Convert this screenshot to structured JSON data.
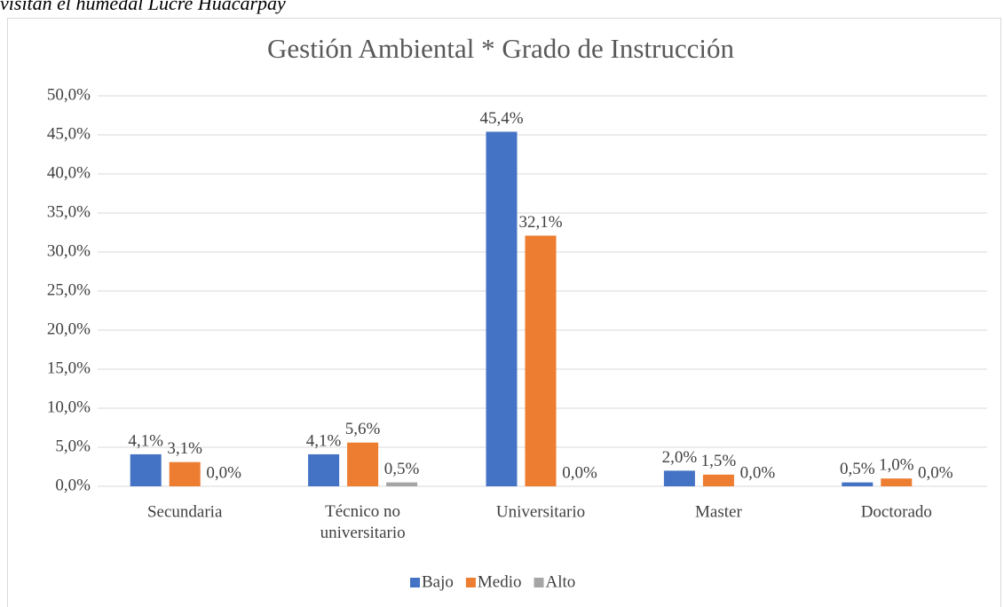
{
  "caption": "visitan el humedal Lucre Huacarpay",
  "chart_data": {
    "type": "bar",
    "title": "Gestión Ambiental * Grado de Instrucción",
    "categories": [
      "Secundaria",
      "Técnico no universitario",
      "Universitario",
      "Master",
      "Doctorado"
    ],
    "series": [
      {
        "name": "Bajo",
        "color": "#4472c4",
        "values": [
          4.1,
          4.1,
          45.4,
          2.0,
          0.5
        ],
        "value_labels": [
          "4,1%",
          "4,1%",
          "45,4%",
          "2,0%",
          "0,5%"
        ]
      },
      {
        "name": "Medio",
        "color": "#ed7d31",
        "values": [
          3.1,
          5.6,
          32.1,
          1.5,
          1.0
        ],
        "value_labels": [
          "3,1%",
          "5,6%",
          "32,1%",
          "1,5%",
          "1,0%"
        ]
      },
      {
        "name": "Alto",
        "color": "#a5a5a5",
        "values": [
          0.0,
          0.5,
          0.0,
          0.0,
          0.0
        ],
        "value_labels": [
          "0,0%",
          "0,5%",
          "0,0%",
          "0,0%",
          "0,0%"
        ]
      }
    ],
    "ylim": [
      0,
      50
    ],
    "yticks": [
      {
        "value": 0,
        "label": "0,0%"
      },
      {
        "value": 5,
        "label": "5,0%"
      },
      {
        "value": 10,
        "label": "10,0%"
      },
      {
        "value": 15,
        "label": "15,0%"
      },
      {
        "value": 20,
        "label": "20,0%"
      },
      {
        "value": 25,
        "label": "25,0%"
      },
      {
        "value": 30,
        "label": "30,0%"
      },
      {
        "value": 35,
        "label": "35,0%"
      },
      {
        "value": 40,
        "label": "40,0%"
      },
      {
        "value": 45,
        "label": "45,0%"
      },
      {
        "value": 50,
        "label": "50,0%"
      }
    ],
    "grid": true,
    "legend": "bottom"
  }
}
